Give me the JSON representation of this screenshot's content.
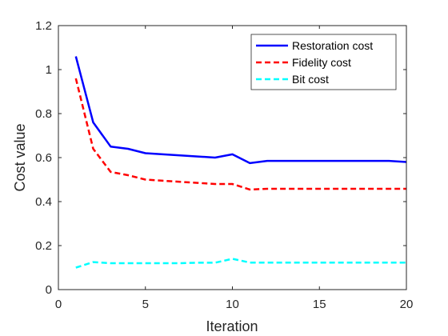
{
  "chart_data": {
    "type": "line",
    "title": "",
    "xlabel": "Iteration",
    "ylabel": "Cost value",
    "xlim": [
      0,
      20
    ],
    "ylim": [
      0,
      1.2
    ],
    "xticks": [
      0,
      5,
      10,
      15,
      20
    ],
    "xtick_labels": [
      "0",
      "5",
      "10",
      "15",
      "20"
    ],
    "yticks": [
      0,
      0.2,
      0.4,
      0.6,
      0.8,
      1,
      1.2
    ],
    "ytick_labels": [
      "0",
      "0.2",
      "0.4",
      "0.6",
      "0.8",
      "1",
      "1.2"
    ],
    "grid": false,
    "legend_position": "top-right",
    "x": [
      1,
      2,
      3,
      4,
      5,
      6,
      7,
      8,
      9,
      10,
      11,
      12,
      13,
      14,
      15,
      16,
      17,
      18,
      19,
      20
    ],
    "series": [
      {
        "name": "Restoration cost",
        "color": "#0000ff",
        "style": "solid",
        "values": [
          1.06,
          0.76,
          0.65,
          0.64,
          0.62,
          0.615,
          0.61,
          0.605,
          0.6,
          0.615,
          0.575,
          0.585,
          0.585,
          0.585,
          0.585,
          0.585,
          0.585,
          0.585,
          0.585,
          0.58
        ]
      },
      {
        "name": "Fidelity cost",
        "color": "#ff0000",
        "style": "dashed",
        "values": [
          0.96,
          0.64,
          0.535,
          0.52,
          0.5,
          0.495,
          0.49,
          0.485,
          0.48,
          0.48,
          0.455,
          0.458,
          0.458,
          0.458,
          0.458,
          0.458,
          0.458,
          0.458,
          0.458,
          0.458
        ]
      },
      {
        "name": "Bit cost",
        "color": "#00ffff",
        "style": "dashed",
        "values": [
          0.1,
          0.125,
          0.12,
          0.12,
          0.12,
          0.12,
          0.12,
          0.122,
          0.122,
          0.14,
          0.123,
          0.123,
          0.123,
          0.123,
          0.123,
          0.123,
          0.123,
          0.123,
          0.123,
          0.123
        ]
      }
    ]
  }
}
